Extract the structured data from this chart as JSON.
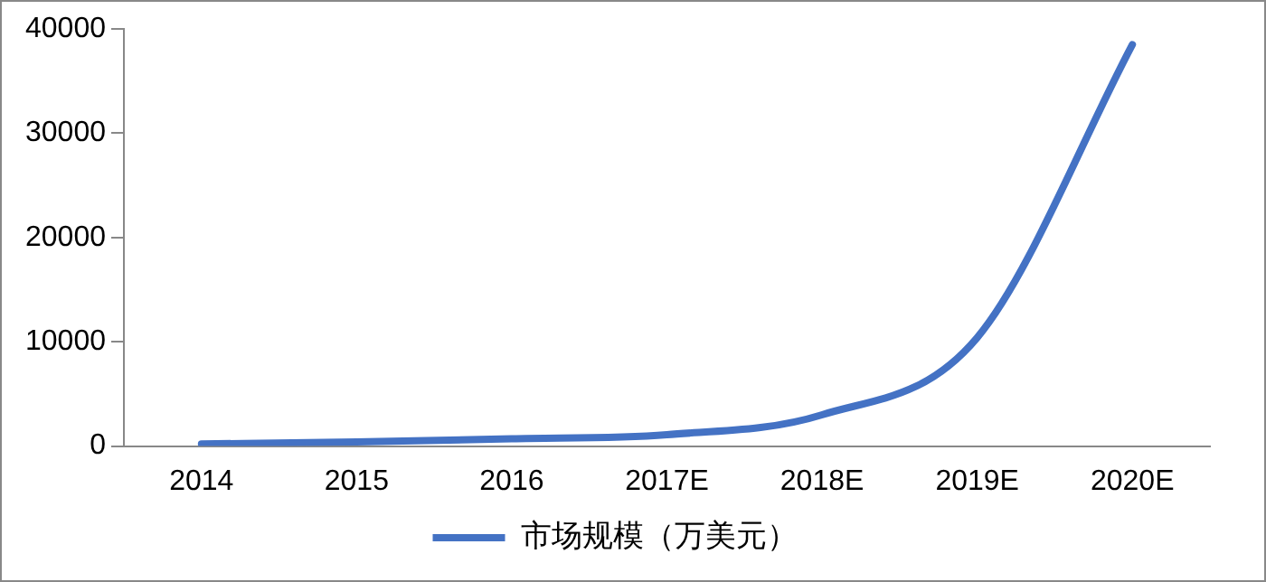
{
  "chart_data": {
    "type": "line",
    "categories": [
      "2014",
      "2015",
      "2016",
      "2017E",
      "2018E",
      "2019E",
      "2020E"
    ],
    "series": [
      {
        "name": "市场规模（万美元）",
        "color": "#4472c4",
        "values": [
          200,
          400,
          700,
          1100,
          3000,
          10400,
          38500
        ]
      }
    ],
    "ylim": [
      0,
      40000
    ],
    "yticks": [
      0,
      10000,
      20000,
      30000,
      40000
    ],
    "grid": false,
    "legend": "bottom",
    "marker": "none",
    "line_style": "solid"
  }
}
